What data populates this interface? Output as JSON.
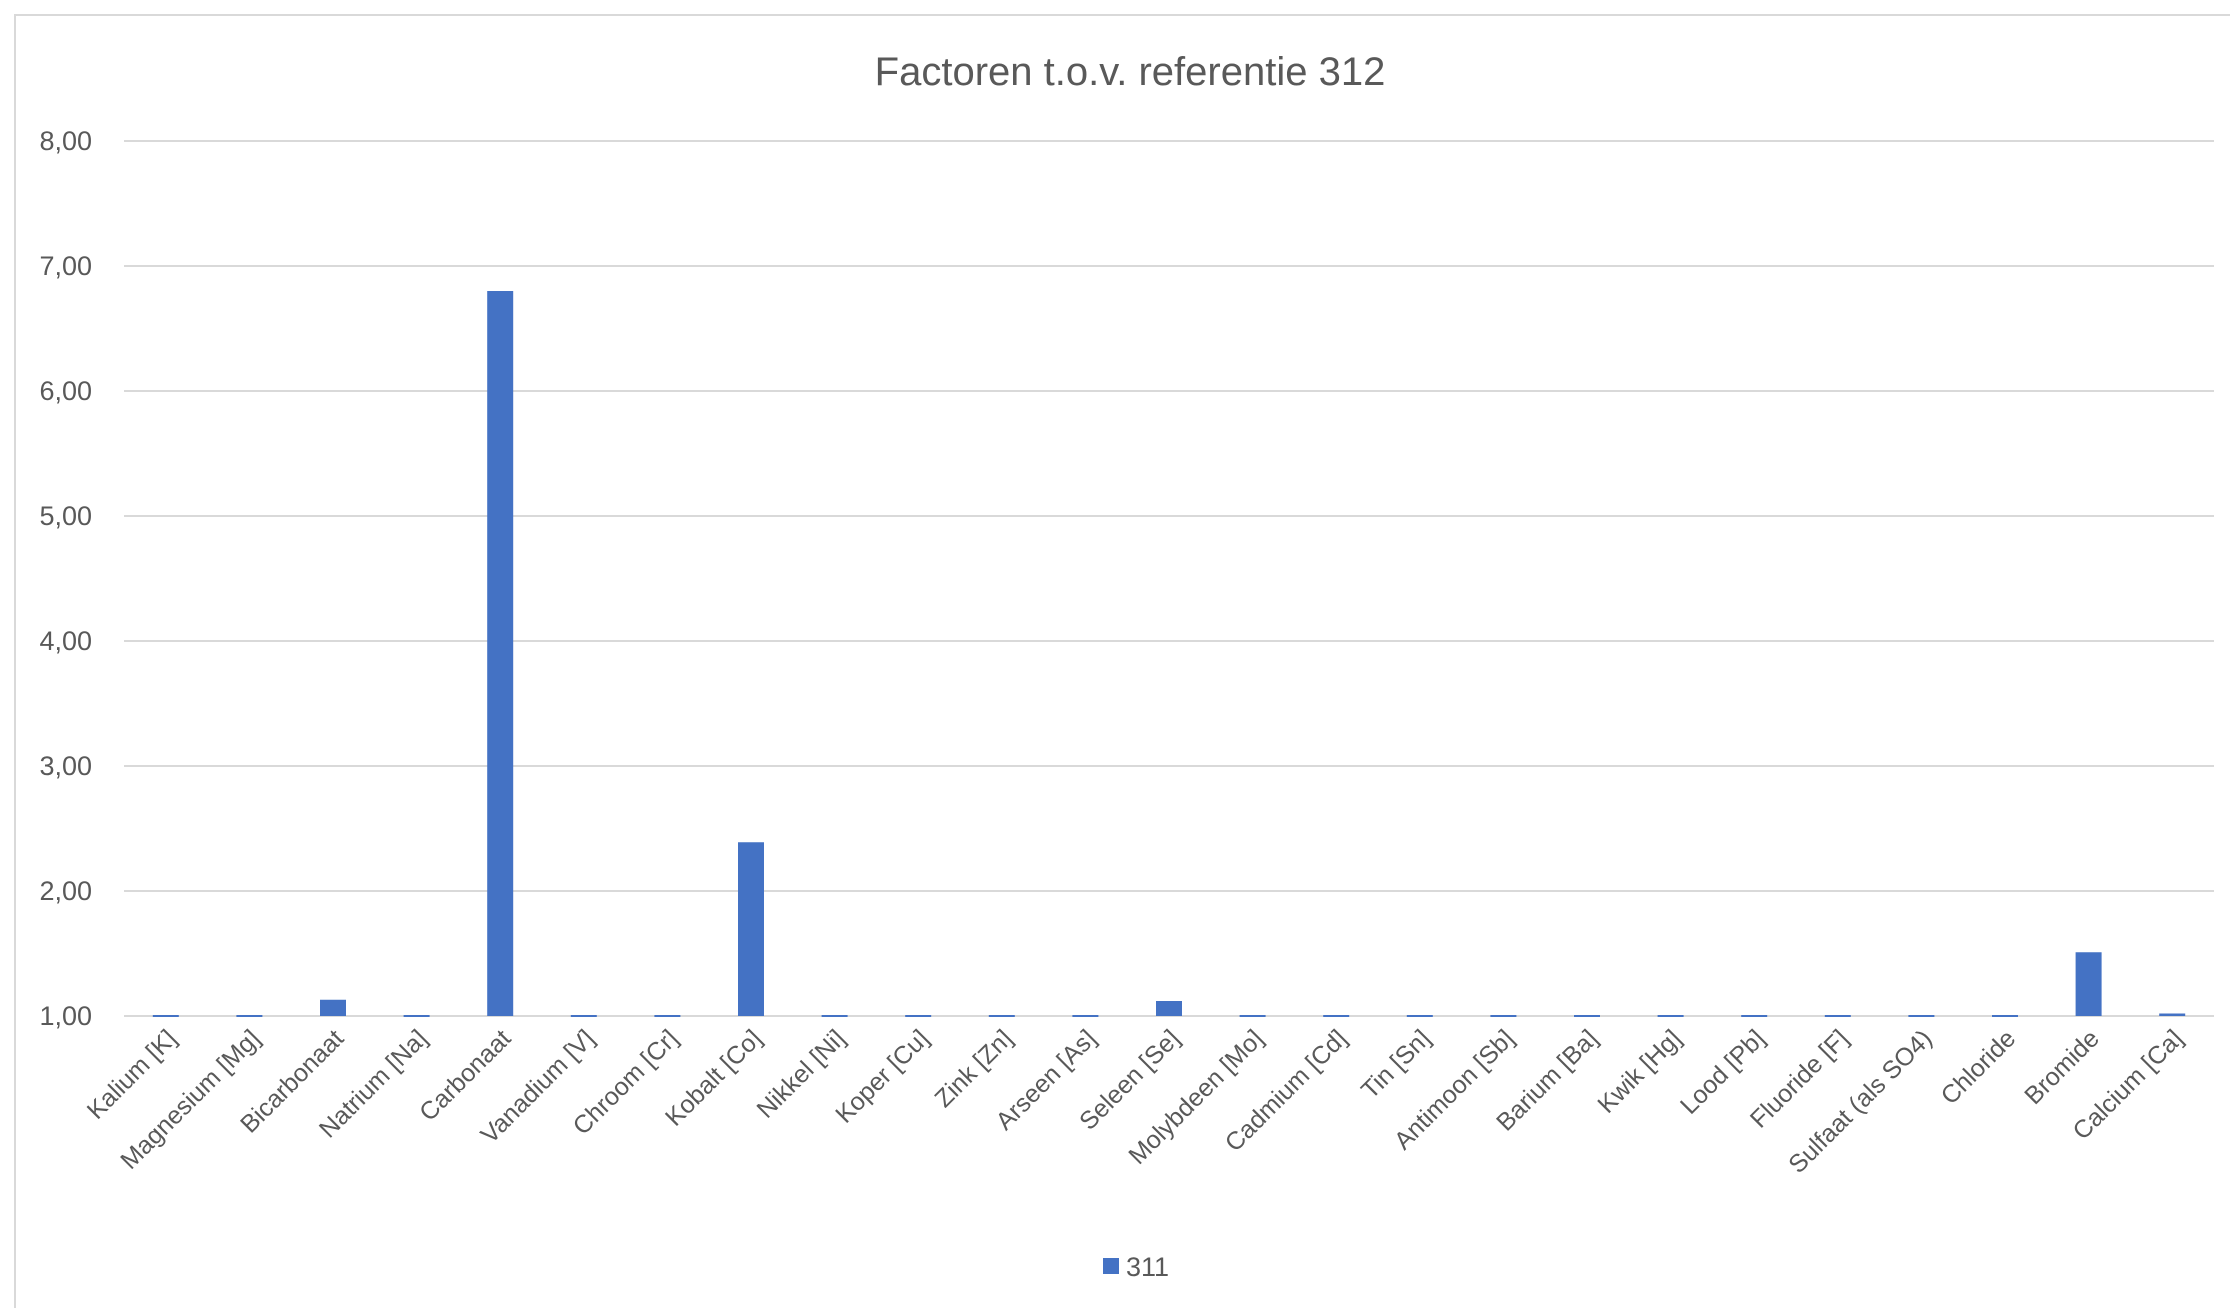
{
  "chart_data": {
    "type": "bar",
    "title": "Factoren t.o.v. referentie 312",
    "xlabel": "",
    "ylabel": "",
    "ylim": [
      1,
      8
    ],
    "yticks": [
      "1,00",
      "2,00",
      "3,00",
      "4,00",
      "5,00",
      "6,00",
      "7,00",
      "8,00"
    ],
    "grid": true,
    "legend_position": "bottom",
    "categories": [
      "Kalium [K]",
      "Magnesium [Mg]",
      "Bicarbonaat",
      "Natrium [Na]",
      "Carbonaat",
      "Vanadium [V]",
      "Chroom [Cr]",
      "Kobalt [Co]",
      "Nikkel [Ni]",
      "Koper [Cu]",
      "Zink [Zn]",
      "Arseen [As]",
      "Seleen [Se]",
      "Molybdeen [Mo]",
      "Cadmium [Cd]",
      "Tin [Sn]",
      "Antimoon [Sb]",
      "Barium [Ba]",
      "Kwik [Hg]",
      "Lood [Pb]",
      "Fluoride [F]",
      "Sulfaat (als SO4)",
      "Chloride",
      "Bromide",
      "Calcium [Ca]"
    ],
    "series": [
      {
        "name": "311",
        "color": "#4472c4",
        "values": [
          1.0,
          1.0,
          1.13,
          0.99,
          6.8,
          1.0,
          0.99,
          2.39,
          1.0,
          0.99,
          0.99,
          1.0,
          1.12,
          1.0,
          1.0,
          1.0,
          1.0,
          1.0,
          1.0,
          1.0,
          0.99,
          0.99,
          0.99,
          1.51,
          1.02
        ]
      }
    ]
  }
}
